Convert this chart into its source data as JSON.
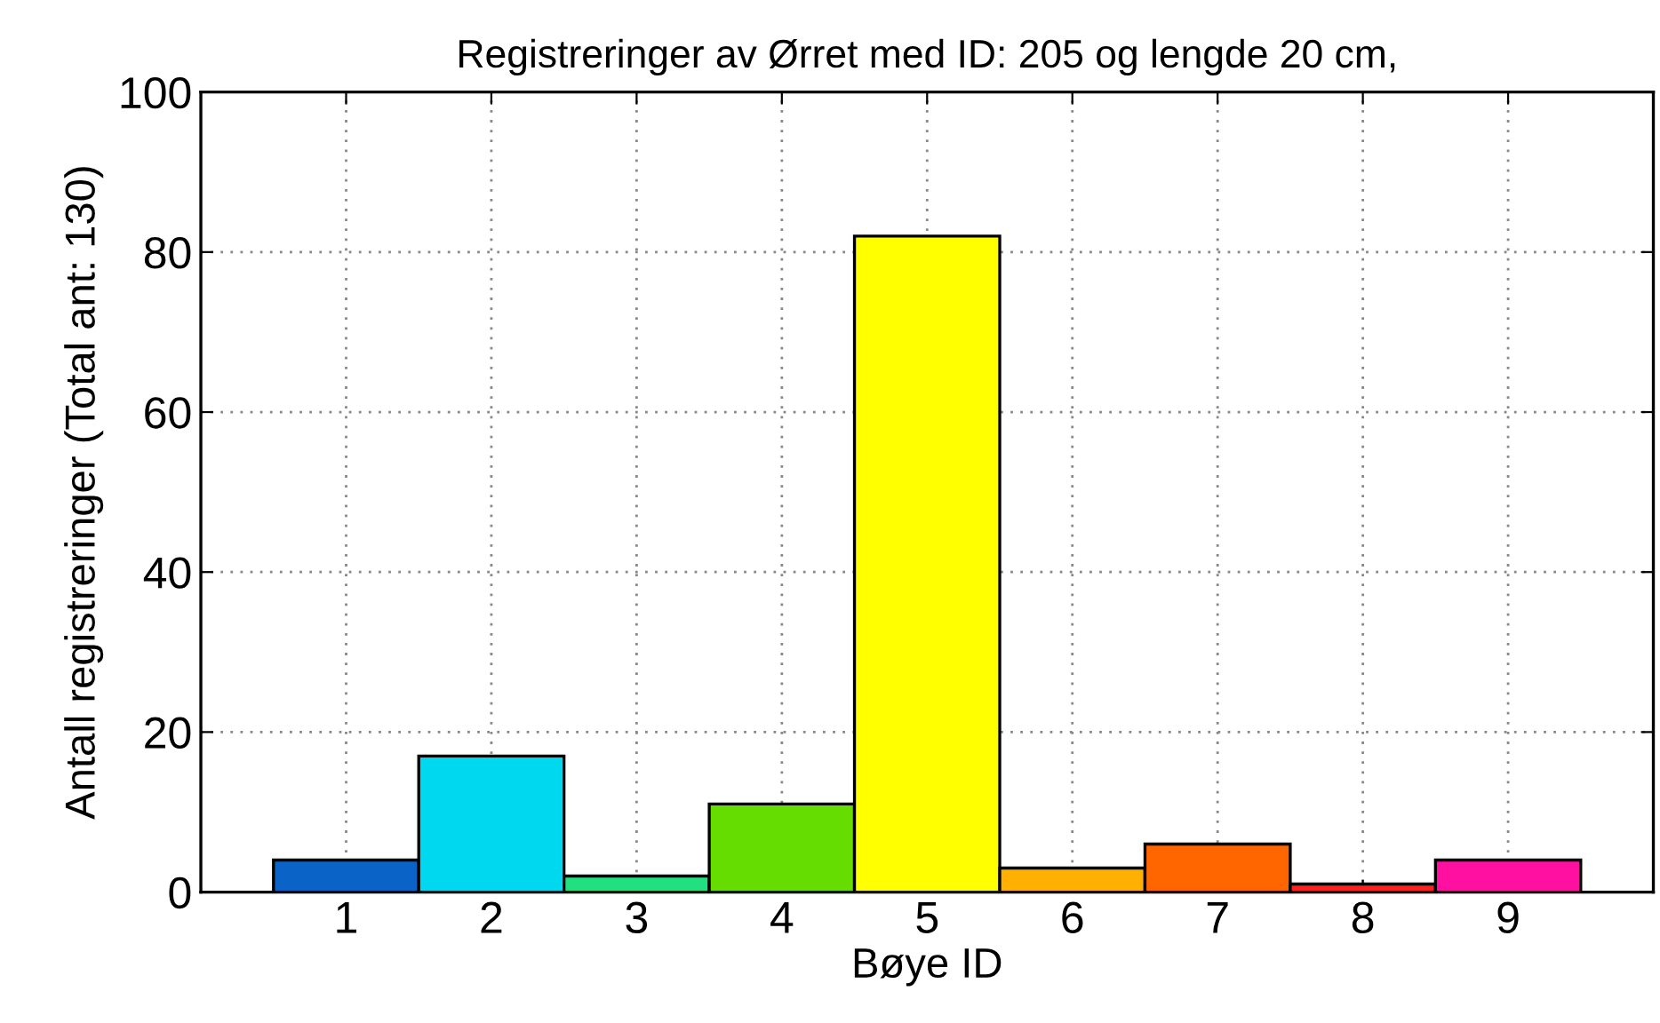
{
  "chart_data": {
    "type": "bar",
    "title": "Registreringer av Ørret med ID: 205 og lengde 20 cm,",
    "xlabel": "Bøye ID",
    "ylabel": "Antall registreringer (Total ant: 130)",
    "x": [
      1,
      2,
      3,
      4,
      5,
      6,
      7,
      8,
      9
    ],
    "values": [
      4,
      17,
      2,
      11,
      82,
      3,
      6,
      1,
      4
    ],
    "colors": [
      "#0a64c8",
      "#00d8f0",
      "#20e080",
      "#66dd00",
      "#ffff00",
      "#ffb000",
      "#ff6600",
      "#ff2020",
      "#ff10a0"
    ],
    "xlim": [
      0,
      10
    ],
    "xticks": [
      1,
      2,
      3,
      4,
      5,
      6,
      7,
      8,
      9
    ],
    "ylim": [
      0,
      100
    ],
    "yticks": [
      0,
      20,
      40,
      60,
      80,
      100
    ],
    "grid": true
  }
}
